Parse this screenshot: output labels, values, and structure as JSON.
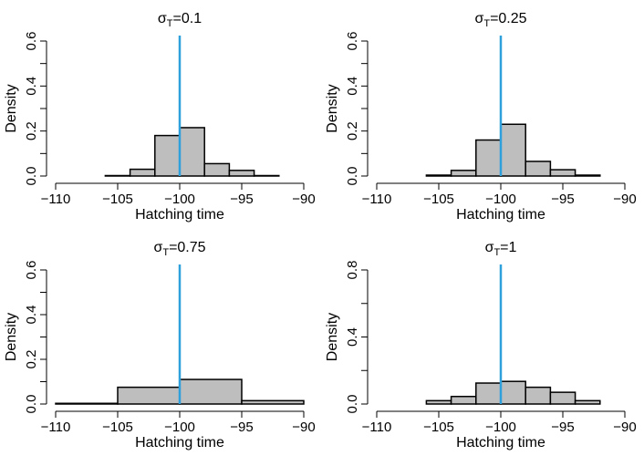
{
  "figure": {
    "bar_fill": "#bebebe",
    "bar_edge": "#000000",
    "reference_line_color": "#2ea0dc"
  },
  "chart_data": [
    {
      "type": "bar",
      "title_symbol": "σ",
      "title_subscript": "T",
      "title_value": "=0.1",
      "xlabel": "Hatching time",
      "ylabel": "Density",
      "xlim": [
        -110,
        -90
      ],
      "ylim": [
        0,
        0.6
      ],
      "xticks": [
        -110,
        -105,
        -100,
        -95,
        -90
      ],
      "xtick_labels": [
        "−110",
        "−105",
        "−100",
        "−95",
        "−90"
      ],
      "yticks": [
        0.0,
        0.2,
        0.4,
        0.6
      ],
      "ytick_labels": [
        "0.0",
        "0.2",
        "0.4",
        "0.6"
      ],
      "minor_yticks": [
        0.1,
        0.3,
        0.5
      ],
      "reference_x": -100,
      "bins": [
        {
          "from": -106,
          "to": -104,
          "value": 0.002
        },
        {
          "from": -104,
          "to": -102,
          "value": 0.03
        },
        {
          "from": -102,
          "to": -100,
          "value": 0.18
        },
        {
          "from": -100,
          "to": -98,
          "value": 0.215
        },
        {
          "from": -98,
          "to": -96,
          "value": 0.055
        },
        {
          "from": -96,
          "to": -94,
          "value": 0.025
        },
        {
          "from": -94,
          "to": -92,
          "value": 0.002
        }
      ]
    },
    {
      "type": "bar",
      "title_symbol": "σ",
      "title_subscript": "T",
      "title_value": "=0.25",
      "xlabel": "Hatching time",
      "ylabel": "Density",
      "xlim": [
        -110,
        -90
      ],
      "ylim": [
        0,
        0.6
      ],
      "xticks": [
        -110,
        -105,
        -100,
        -95,
        -90
      ],
      "xtick_labels": [
        "−110",
        "−105",
        "−100",
        "−95",
        "−90"
      ],
      "yticks": [
        0.0,
        0.2,
        0.4,
        0.6
      ],
      "ytick_labels": [
        "0.0",
        "0.2",
        "0.4",
        "0.6"
      ],
      "minor_yticks": [
        0.1,
        0.3,
        0.5
      ],
      "reference_x": -100,
      "bins": [
        {
          "from": -106,
          "to": -104,
          "value": 0.004
        },
        {
          "from": -104,
          "to": -102,
          "value": 0.025
        },
        {
          "from": -102,
          "to": -100,
          "value": 0.16
        },
        {
          "from": -100,
          "to": -98,
          "value": 0.23
        },
        {
          "from": -98,
          "to": -96,
          "value": 0.065
        },
        {
          "from": -96,
          "to": -94,
          "value": 0.028
        },
        {
          "from": -94,
          "to": -92,
          "value": 0.004
        }
      ]
    },
    {
      "type": "bar",
      "title_symbol": "σ",
      "title_subscript": "T",
      "title_value": "=0.75",
      "xlabel": "Hatching time",
      "ylabel": "Density",
      "xlim": [
        -110,
        -90
      ],
      "ylim": [
        0,
        0.6
      ],
      "xticks": [
        -110,
        -105,
        -100,
        -95,
        -90
      ],
      "xtick_labels": [
        "−110",
        "−105",
        "−100",
        "−95",
        "−90"
      ],
      "yticks": [
        0.0,
        0.2,
        0.4,
        0.6
      ],
      "ytick_labels": [
        "0.0",
        "0.2",
        "0.4",
        "0.6"
      ],
      "minor_yticks": [
        0.1,
        0.3,
        0.5
      ],
      "reference_x": -100,
      "bins": [
        {
          "from": -110,
          "to": -105,
          "value": 0.003
        },
        {
          "from": -105,
          "to": -100,
          "value": 0.075
        },
        {
          "from": -100,
          "to": -95,
          "value": 0.11
        },
        {
          "from": -95,
          "to": -90,
          "value": 0.015
        }
      ]
    },
    {
      "type": "bar",
      "title_symbol": "σ",
      "title_subscript": "T",
      "title_value": "=1",
      "xlabel": "Hatching time",
      "ylabel": "Density",
      "xlim": [
        -110,
        -90
      ],
      "ylim": [
        0,
        0.8
      ],
      "xticks": [
        -110,
        -105,
        -100,
        -95,
        -90
      ],
      "xtick_labels": [
        "−110",
        "−105",
        "−100",
        "−95",
        "−90"
      ],
      "yticks": [
        0.0,
        0.4,
        0.8
      ],
      "ytick_labels": [
        "0.0",
        "0.4",
        "0.8"
      ],
      "minor_yticks": [
        0.2,
        0.6
      ],
      "reference_x": -100,
      "bins": [
        {
          "from": -106,
          "to": -104,
          "value": 0.02
        },
        {
          "from": -104,
          "to": -102,
          "value": 0.045
        },
        {
          "from": -102,
          "to": -100,
          "value": 0.125
        },
        {
          "from": -100,
          "to": -98,
          "value": 0.135
        },
        {
          "from": -98,
          "to": -96,
          "value": 0.1
        },
        {
          "from": -96,
          "to": -94,
          "value": 0.07
        },
        {
          "from": -94,
          "to": -92,
          "value": 0.02
        }
      ]
    }
  ]
}
